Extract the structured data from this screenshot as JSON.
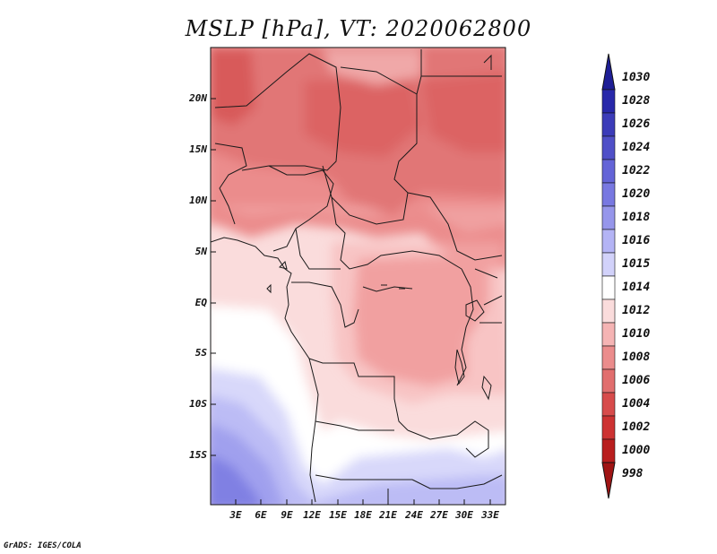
{
  "title": "MSLP [hPa], VT: 2020062800",
  "credit": "GrADS: IGES/COLA",
  "lat_ticks": [
    "20N",
    "15N",
    "10N",
    "5N",
    "EQ",
    "5S",
    "10S",
    "15S"
  ],
  "lon_ticks": [
    "3E",
    "6E",
    "9E",
    "12E",
    "15E",
    "18E",
    "21E",
    "24E",
    "27E",
    "30E",
    "33E"
  ],
  "colorbar": {
    "labels_top_to_bottom": [
      "1030",
      "1028",
      "1026",
      "1024",
      "1022",
      "1020",
      "1018",
      "1016",
      "1015",
      "1014",
      "1012",
      "1010",
      "1008",
      "1006",
      "1004",
      "1002",
      "1000",
      "998"
    ],
    "colors_top_to_bottom": [
      "#1e1e96",
      "#2828aa",
      "#3c3cb9",
      "#5050c8",
      "#6464d7",
      "#7878e1",
      "#9696eb",
      "#b4b4f5",
      "#d2d2fa",
      "#ffffff",
      "#fadcdc",
      "#f5b4b4",
      "#eb8c8c",
      "#e16e6e",
      "#d74b4b",
      "#cd3232",
      "#b91e1e",
      "#a01414"
    ]
  },
  "chart_data": {
    "type": "heatmap",
    "title": "MSLP [hPa], VT: 2020062800",
    "variable": "Mean sea level pressure",
    "units": "hPa",
    "valid_time": "2020062800",
    "x_ticks": [
      "3E",
      "6E",
      "9E",
      "12E",
      "15E",
      "18E",
      "21E",
      "24E",
      "27E",
      "30E",
      "33E"
    ],
    "y_ticks": [
      "20N",
      "15N",
      "10N",
      "5N",
      "EQ",
      "5S",
      "10S",
      "15S"
    ],
    "lon_range": [
      0,
      34.5
    ],
    "lat_range": [
      -19.5,
      24.5
    ],
    "value_range": [
      998,
      1030
    ],
    "field_description_values": {
      "sahara_thermal_low": 1005,
      "sahel": 1007,
      "congo_basin": 1008,
      "gulf_of_guinea": 1012,
      "angola_coast": 1014,
      "south_atlantic_high_edge": 1019
    }
  }
}
